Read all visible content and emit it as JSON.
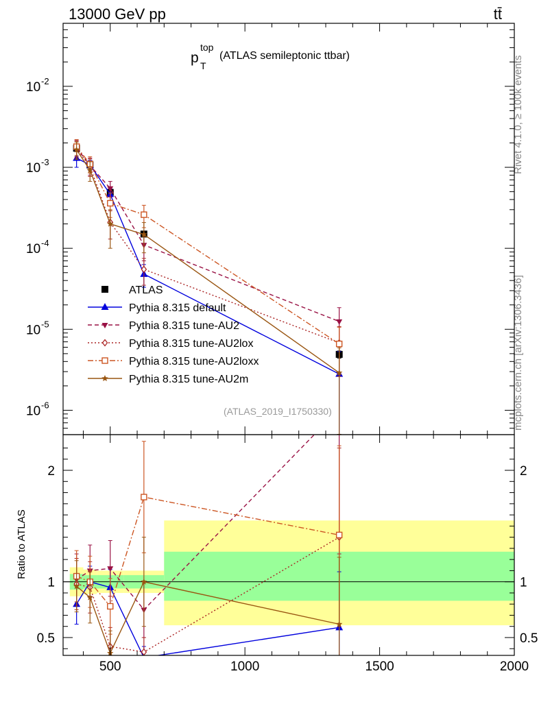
{
  "header": {
    "left_title": "13000 GeV pp",
    "right_title": "tt̄"
  },
  "side_labels": {
    "rivet": "Rivet 4.1.0, ≥ 100k events",
    "mcplots": "mcplots.cern.ch [arXiv:1306.3436]"
  },
  "analysis_tag": "(ATLAS_2019_I1750330)",
  "colors": {
    "ATLAS": "#000000",
    "default": "#0000dd",
    "AU2": "#991144",
    "AU2lox": "#aa2222",
    "AU2loxx": "#cc5522",
    "AU2m": "#995511",
    "band_inner": "#99ff99",
    "band_outer": "#ffff99"
  },
  "chart_data": [
    {
      "type": "line",
      "title_main": "p",
      "title_sup": "top",
      "title_sub": "T",
      "title_rest": "(ATLAS semileptonic ttbar)",
      "title": "p_T^top (ATLAS semileptonic ttbar)",
      "xlim": [
        325,
        2000
      ],
      "ylim": [
        5e-07,
        0.06
      ],
      "yscale": "log",
      "ytick_labels": [
        {
          "base": "10",
          "exp": "-2",
          "value": 0.01
        },
        {
          "base": "10",
          "exp": "-3",
          "value": 0.001
        },
        {
          "base": "10",
          "exp": "-4",
          "value": 0.0001
        },
        {
          "base": "10",
          "exp": "-5",
          "value": 1e-05
        },
        {
          "base": "10",
          "exp": "-6",
          "value": 1e-06
        }
      ],
      "legend_position": "middle-left",
      "series": [
        {
          "key": "ATLAS",
          "name": "ATLAS",
          "marker": "square-filled",
          "style": "none",
          "x": [
            375,
            425,
            500,
            625,
            1350
          ],
          "y": [
            0.00172,
            0.00107,
            0.00049,
            0.00015,
            4.9e-06
          ],
          "err_up": [
            0.00016,
            8e-05,
            3e-05,
            1e-05,
            5e-07
          ],
          "err_dn": [
            0.00016,
            8e-05,
            3e-05,
            1e-05,
            5e-07
          ]
        },
        {
          "key": "default",
          "name": "Pythia 8.315 default",
          "marker": "triangle-up",
          "style": "solid",
          "x": [
            375,
            425,
            500,
            625,
            1350
          ],
          "y": [
            0.0013,
            0.00107,
            0.000465,
            4.8e-05,
            2.8e-06
          ],
          "err_up": [
            0.0003,
            0.00015,
            8e-05,
            1.5e-05,
            2.5e-06
          ],
          "err_dn": [
            0.0003,
            0.00015,
            8e-05,
            1.5e-05,
            2.5e-06
          ]
        },
        {
          "key": "AU2",
          "name": "Pythia 8.315 tune-AU2",
          "marker": "triangle-down",
          "style": "dashed",
          "x": [
            375,
            425,
            500,
            625,
            1350
          ],
          "y": [
            0.00175,
            0.00105,
            0.00055,
            0.00011,
            1.25e-05
          ],
          "err_up": [
            0.0004,
            0.00025,
            0.00012,
            4e-05,
            6e-06
          ],
          "err_dn": [
            0.0004,
            0.00025,
            0.00012,
            4e-05,
            6e-06
          ]
        },
        {
          "key": "AU2lox",
          "name": "Pythia 8.315 tune-AU2lox",
          "marker": "diamond-open",
          "style": "dotted",
          "x": [
            375,
            425,
            500,
            625,
            1350
          ],
          "y": [
            0.0017,
            0.00102,
            0.00021,
            5.5e-05,
            6.8e-06
          ],
          "err_up": [
            0.0004,
            0.00025,
            8e-05,
            2e-05,
            4e-06
          ],
          "err_dn": [
            0.0004,
            0.00025,
            8e-05,
            2e-05,
            4e-06
          ]
        },
        {
          "key": "AU2loxx",
          "name": "Pythia 8.315 tune-AU2loxx",
          "marker": "square-open",
          "style": "dashdot",
          "x": [
            375,
            425,
            500,
            625,
            1350
          ],
          "y": [
            0.0018,
            0.0011,
            0.00036,
            0.00026,
            6.6e-06
          ],
          "err_up": [
            0.0004,
            0.00025,
            0.00012,
            8e-05,
            4e-06
          ],
          "err_dn": [
            0.0004,
            0.00025,
            0.00012,
            8e-05,
            4e-06
          ]
        },
        {
          "key": "AU2m",
          "name": "Pythia 8.315 tune-AU2m",
          "marker": "star",
          "style": "solid",
          "x": [
            375,
            425,
            500,
            625,
            1350
          ],
          "y": [
            0.00165,
            0.00092,
            0.0002,
            0.000148,
            2.9e-06
          ],
          "err_up": [
            0.0004,
            0.00025,
            0.0001,
            6e-05,
            3e-06
          ],
          "err_dn": [
            0.0004,
            0.00025,
            0.0001,
            6e-05,
            3e-06
          ]
        }
      ]
    },
    {
      "type": "line",
      "ylabel": "Ratio to ATLAS",
      "xlabel": "",
      "xlim": [
        325,
        2000
      ],
      "ylim": [
        0.34,
        2.32
      ],
      "xtick_labels": [
        "500",
        "1000",
        "1500",
        "2000"
      ],
      "xticks": [
        500,
        1000,
        1500,
        2000
      ],
      "ytick_labels": [
        "0.5",
        "1",
        "2"
      ],
      "yticks": [
        0.5,
        1,
        2
      ],
      "bands": [
        {
          "x0": 350,
          "x1": 400,
          "inner": [
            0.93,
            1.07
          ],
          "outer": [
            0.87,
            1.13
          ]
        },
        {
          "x0": 400,
          "x1": 450,
          "inner": [
            0.94,
            1.06
          ],
          "outer": [
            0.89,
            1.11
          ]
        },
        {
          "x0": 450,
          "x1": 550,
          "inner": [
            0.94,
            1.06
          ],
          "outer": [
            0.9,
            1.1
          ]
        },
        {
          "x0": 550,
          "x1": 700,
          "inner": [
            0.94,
            1.06
          ],
          "outer": [
            0.9,
            1.1
          ]
        },
        {
          "x0": 700,
          "x1": 2000,
          "inner": [
            0.83,
            1.27
          ],
          "outer": [
            0.61,
            1.55
          ]
        }
      ],
      "series": [
        {
          "key": "default",
          "x": [
            375,
            425,
            500,
            625,
            1350
          ],
          "y": [
            0.8,
            1.0,
            0.95,
            0.32,
            0.59
          ],
          "err": [
            0.18,
            0.14,
            0.16,
            0.1,
            0.5
          ]
        },
        {
          "key": "AU2",
          "x": [
            375,
            425,
            500,
            625,
            1350
          ],
          "y": [
            1.02,
            1.1,
            1.12,
            0.75,
            2.55
          ],
          "err": [
            0.23,
            0.23,
            0.25,
            0.25,
            1.3
          ]
        },
        {
          "key": "AU2lox",
          "x": [
            375,
            425,
            500,
            625,
            1350
          ],
          "y": [
            0.98,
            0.95,
            0.42,
            0.37,
            1.4
          ],
          "err": [
            0.23,
            0.23,
            0.17,
            0.13,
            0.8
          ]
        },
        {
          "key": "AU2loxx",
          "x": [
            375,
            425,
            500,
            625,
            1350
          ],
          "y": [
            1.05,
            1.0,
            0.78,
            1.76,
            1.42
          ],
          "err": [
            0.23,
            0.23,
            0.25,
            0.5,
            0.8
          ]
        },
        {
          "key": "AU2m",
          "x": [
            375,
            425,
            500,
            625,
            1350
          ],
          "y": [
            0.96,
            0.86,
            0.36,
            1.0,
            0.62
          ],
          "err": [
            0.23,
            0.23,
            0.2,
            0.4,
            0.6
          ]
        }
      ]
    }
  ]
}
